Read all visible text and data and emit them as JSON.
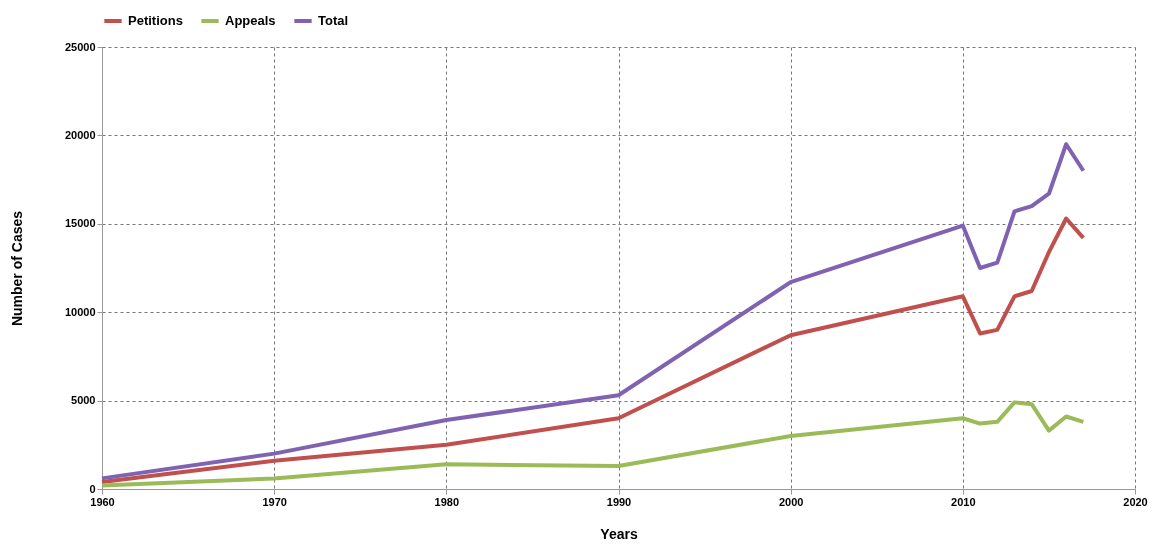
{
  "chart_data": {
    "type": "line",
    "xlabel": "Years",
    "ylabel": "Number of Cases",
    "x": [
      1960,
      1970,
      1980,
      1990,
      2000,
      2010,
      2011,
      2012,
      2013,
      2014,
      2015,
      2016,
      2017
    ],
    "series": [
      {
        "name": "Petitions",
        "color": "#c0504d",
        "values": [
          400,
          1600,
          2500,
          4000,
          8700,
          10900,
          8800,
          9000,
          10900,
          11200,
          13400,
          15300,
          14200
        ]
      },
      {
        "name": "Appeals",
        "color": "#9bbb59",
        "values": [
          200,
          600,
          1400,
          1300,
          3000,
          4000,
          3700,
          3800,
          4900,
          4800,
          3300,
          4100,
          3800
        ]
      },
      {
        "name": "Total",
        "color": "#7f63b2",
        "values": [
          600,
          2000,
          3900,
          5300,
          11700,
          14900,
          12500,
          12800,
          15700,
          16000,
          16700,
          19500,
          18000
        ]
      }
    ],
    "xlim": [
      1960,
      2020
    ],
    "xticks": [
      1960,
      1970,
      1980,
      1990,
      2000,
      2010,
      2020
    ],
    "ylim": [
      0,
      25000
    ],
    "yticks": [
      0,
      5000,
      10000,
      15000,
      20000,
      25000
    ],
    "grid": true,
    "legend": "top",
    "marker": "none",
    "line_style": "solid"
  }
}
